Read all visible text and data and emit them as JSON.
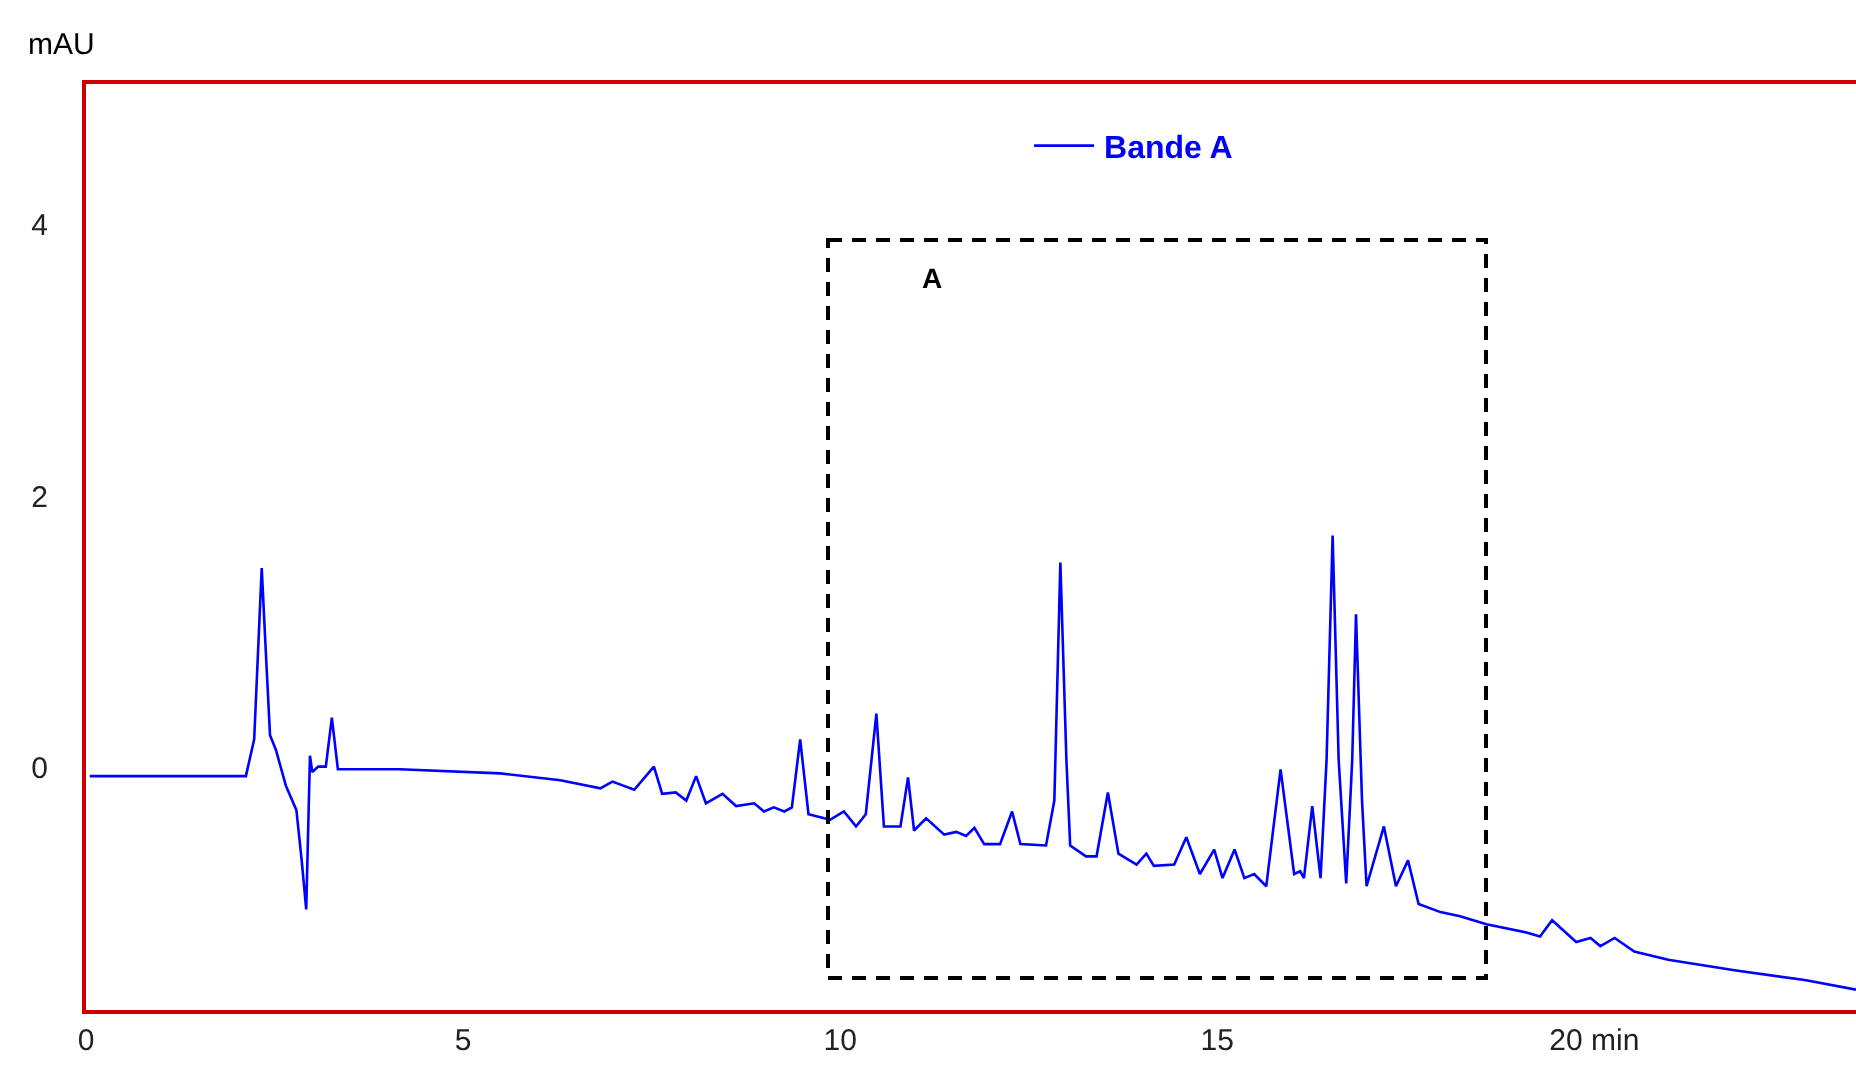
{
  "chart_data": {
    "type": "line",
    "ylabel": "mAU",
    "legend": "top",
    "grid": false,
    "line_style": "solid",
    "marker": "none",
    "xlim": [
      0,
      23.47
    ],
    "ylim": [
      -1.78,
      5.03
    ],
    "xticks": [
      0,
      5,
      10,
      15,
      {
        "value": 20,
        "label": "20 min"
      }
    ],
    "yticks": [
      0,
      2,
      4
    ],
    "annotations": [
      "A"
    ],
    "series": [
      {
        "name": "Bande A",
        "color": "#0000ff",
        "x": [
          0.05,
          2.12,
          2.23,
          2.33,
          2.39,
          2.44,
          2.52,
          2.65,
          2.79,
          2.86,
          2.92,
          2.97,
          3.0,
          3.08,
          3.18,
          3.26,
          3.34,
          3.42,
          4.16,
          5.49,
          6.29,
          6.82,
          6.98,
          7.27,
          7.53,
          7.64,
          7.82,
          7.96,
          8.09,
          8.22,
          8.44,
          8.62,
          8.86,
          8.99,
          9.12,
          9.26,
          9.36,
          9.47,
          9.58,
          9.79,
          9.87,
          10.05,
          10.21,
          10.34,
          10.48,
          10.58,
          10.8,
          10.9,
          10.98,
          11.14,
          11.38,
          11.54,
          11.67,
          11.78,
          11.91,
          12.12,
          12.28,
          12.39,
          12.73,
          12.84,
          12.92,
          13.0,
          13.05,
          13.26,
          13.4,
          13.55,
          13.69,
          13.93,
          14.06,
          14.16,
          14.43,
          14.59,
          14.77,
          14.96,
          15.07,
          15.23,
          15.36,
          15.49,
          15.65,
          15.84,
          16.02,
          16.1,
          16.15,
          16.26,
          16.37,
          16.45,
          16.53,
          16.61,
          16.71,
          16.79,
          16.84,
          16.92,
          16.98,
          17.21,
          17.37,
          17.53,
          17.67,
          17.96,
          18.22,
          18.57,
          19.1,
          19.28,
          19.44,
          19.76,
          19.95,
          20.08,
          20.27,
          20.53,
          20.98,
          21.88,
          22.79,
          23.47
        ],
        "values": [
          -0.06,
          -0.06,
          0.21,
          1.47,
          0.79,
          0.24,
          0.13,
          -0.13,
          -0.31,
          -0.68,
          -1.04,
          0.09,
          -0.03,
          0.01,
          0.01,
          0.37,
          -0.01,
          -0.01,
          -0.01,
          -0.04,
          -0.09,
          -0.15,
          -0.1,
          -0.16,
          0.01,
          -0.19,
          -0.18,
          -0.24,
          -0.06,
          -0.26,
          -0.19,
          -0.28,
          -0.26,
          -0.32,
          -0.29,
          -0.32,
          -0.29,
          0.21,
          -0.34,
          -0.37,
          -0.38,
          -0.32,
          -0.43,
          -0.34,
          0.4,
          -0.43,
          -0.43,
          -0.07,
          -0.46,
          -0.37,
          -0.49,
          -0.47,
          -0.5,
          -0.44,
          -0.56,
          -0.56,
          -0.32,
          -0.56,
          -0.57,
          -0.24,
          1.51,
          0.06,
          -0.57,
          -0.65,
          -0.65,
          -0.18,
          -0.63,
          -0.71,
          -0.63,
          -0.72,
          -0.71,
          -0.51,
          -0.78,
          -0.6,
          -0.81,
          -0.6,
          -0.81,
          -0.78,
          -0.87,
          -0.01,
          -0.78,
          -0.76,
          -0.81,
          -0.28,
          -0.81,
          0.06,
          1.71,
          0.06,
          -0.85,
          0.06,
          1.13,
          -0.24,
          -0.87,
          -0.43,
          -0.87,
          -0.68,
          -1.0,
          -1.06,
          -1.09,
          -1.15,
          -1.21,
          -1.24,
          -1.12,
          -1.28,
          -1.25,
          -1.31,
          -1.25,
          -1.35,
          -1.41,
          -1.49,
          -1.56,
          -1.63
        ]
      }
    ]
  }
}
